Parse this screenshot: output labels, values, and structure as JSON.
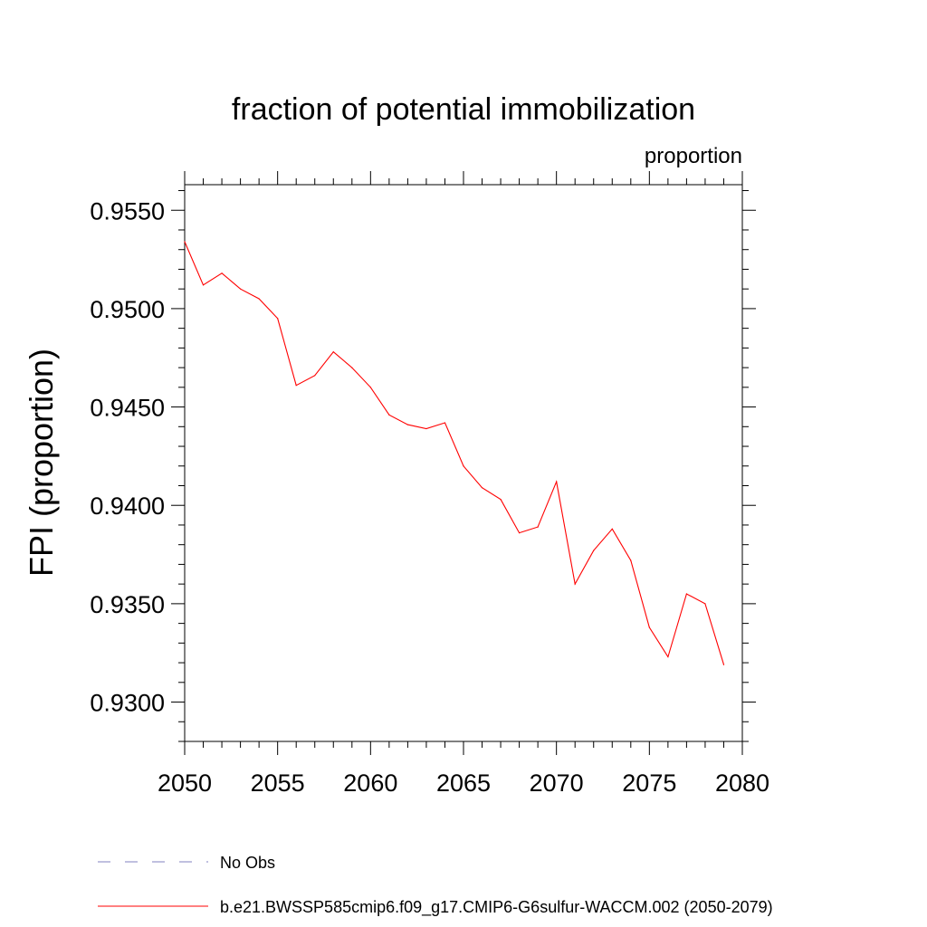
{
  "chart_data": {
    "type": "line",
    "title": "fraction of potential immobilization",
    "subtitle_right": "proportion",
    "ylabel": "FPI  (proportion)",
    "xlabel": "",
    "xlim": [
      2050,
      2080
    ],
    "ylim": [
      0.928,
      0.9563
    ],
    "x_ticks": [
      2050,
      2055,
      2060,
      2065,
      2070,
      2075,
      2080
    ],
    "x_tick_labels": [
      "2050",
      "2055",
      "2060",
      "2065",
      "2070",
      "2075",
      "2080"
    ],
    "y_ticks": [
      0.93,
      0.935,
      0.94,
      0.945,
      0.95,
      0.955
    ],
    "y_tick_labels": [
      "0.9300",
      "0.9350",
      "0.9400",
      "0.9450",
      "0.9500",
      "0.9550"
    ],
    "grid": false,
    "legend_position": "bottom-left",
    "series": [
      {
        "name": "b.e21.BWSSP585cmip6.f09_g17.CMIP6-G6sulfur-WACCM.002 (2050-2079)",
        "color": "#ff0000",
        "style": "solid",
        "x": [
          2050,
          2051,
          2052,
          2053,
          2054,
          2055,
          2056,
          2057,
          2058,
          2059,
          2060,
          2061,
          2062,
          2063,
          2064,
          2065,
          2066,
          2067,
          2068,
          2069,
          2070,
          2071,
          2072,
          2073,
          2074,
          2075,
          2076,
          2077,
          2078,
          2079
        ],
        "y": [
          0.9534,
          0.9512,
          0.9518,
          0.951,
          0.9505,
          0.9495,
          0.9461,
          0.9466,
          0.9478,
          0.947,
          0.946,
          0.9446,
          0.9441,
          0.9439,
          0.9442,
          0.942,
          0.9409,
          0.9403,
          0.9386,
          0.9389,
          0.9412,
          0.936,
          0.9377,
          0.9388,
          0.9372,
          0.9338,
          0.9323,
          0.9355,
          0.935,
          0.9319
        ]
      }
    ],
    "legend": [
      {
        "label": "No Obs",
        "color": "#8080c0",
        "style": "dashed"
      },
      {
        "label": "b.e21.BWSSP585cmip6.f09_g17.CMIP6-G6sulfur-WACCM.002 (2050-2079)",
        "color": "#ff0000",
        "style": "solid"
      }
    ]
  }
}
